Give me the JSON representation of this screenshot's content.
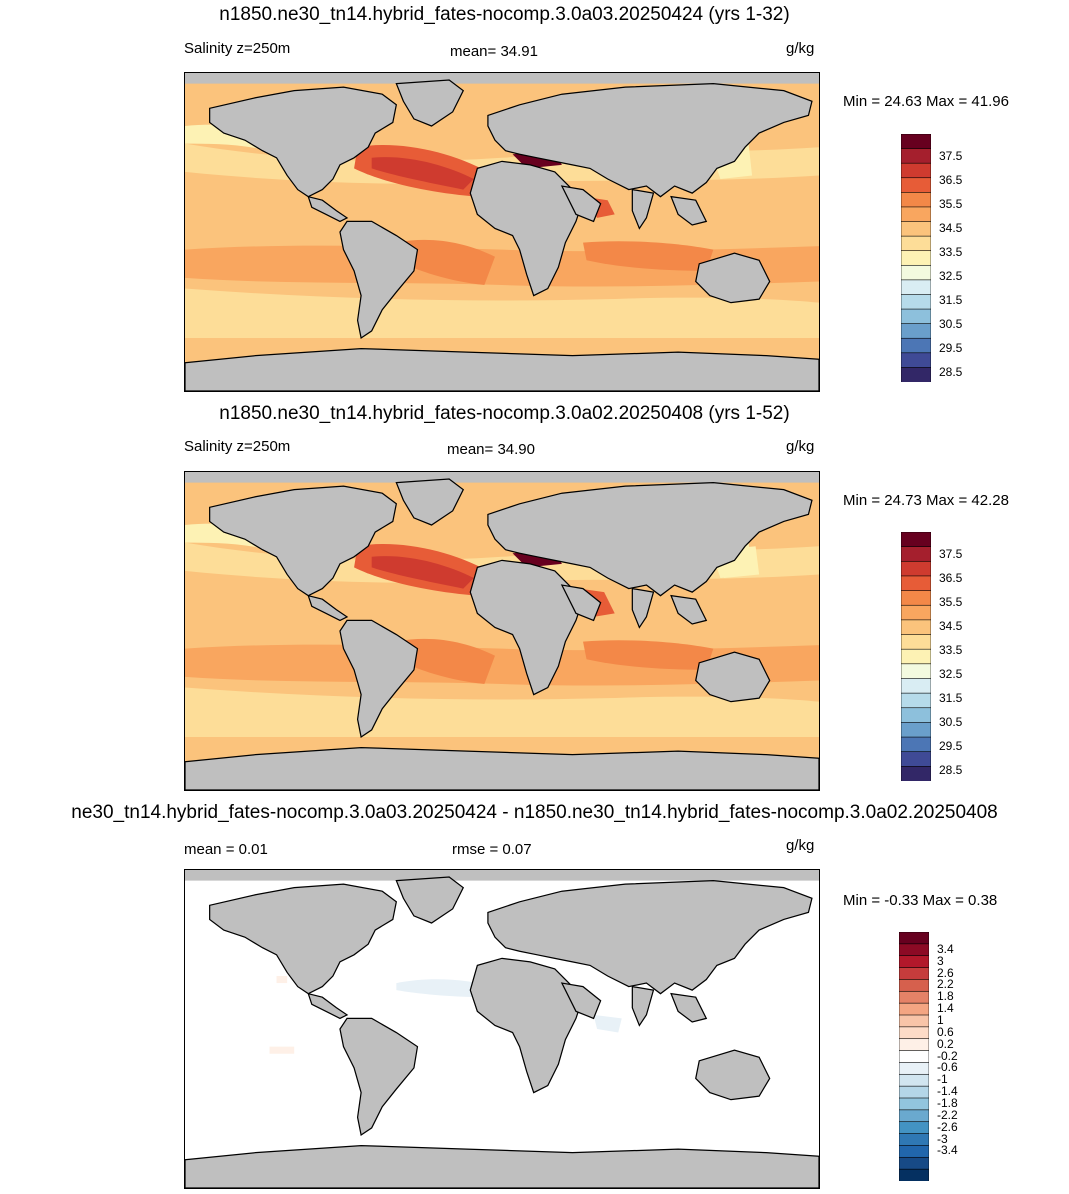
{
  "panels": [
    {
      "title": "n1850.ne30_tn14.hybrid_fates-nocomp.3.0a03.20250424 (yrs 1-32)",
      "left_label": "Salinity z=250m",
      "center_label": "mean=  34.91",
      "units": "g/kg",
      "minmax": "Min =  24.63 Max =  41.96",
      "colorbar": {
        "labels": [
          "37.5",
          "36.5",
          "35.5",
          "34.5",
          "33.5",
          "32.5",
          "31.5",
          "30.5",
          "29.5",
          "28.5"
        ],
        "colors": [
          "#67001f",
          "#a51f2d",
          "#cf3b2f",
          "#e75c37",
          "#f38848",
          "#f9a65f",
          "#fbc37c",
          "#fddd98",
          "#fdf2b4",
          "#f3fadf",
          "#d9edf3",
          "#b6dbea",
          "#8dc0dc",
          "#6a9fcb",
          "#4c76b5",
          "#3f4a96",
          "#322767"
        ]
      },
      "map_kind": "salinity_a03"
    },
    {
      "title": "n1850.ne30_tn14.hybrid_fates-nocomp.3.0a02.20250408 (yrs 1-52)",
      "left_label": "Salinity z=250m",
      "center_label": "mean=  34.90",
      "units": "g/kg",
      "minmax": "Min =  24.73 Max =  42.28",
      "colorbar": {
        "labels": [
          "37.5",
          "36.5",
          "35.5",
          "34.5",
          "33.5",
          "32.5",
          "31.5",
          "30.5",
          "29.5",
          "28.5"
        ],
        "colors": [
          "#67001f",
          "#a51f2d",
          "#cf3b2f",
          "#e75c37",
          "#f38848",
          "#f9a65f",
          "#fbc37c",
          "#fddd98",
          "#fdf2b4",
          "#f3fadf",
          "#d9edf3",
          "#b6dbea",
          "#8dc0dc",
          "#6a9fcb",
          "#4c76b5",
          "#3f4a96",
          "#322767"
        ]
      },
      "map_kind": "salinity_a02"
    },
    {
      "title": "ne30_tn14.hybrid_fates-nocomp.3.0a03.20250424 - n1850.ne30_tn14.hybrid_fates-nocomp.3.0a02.20250408",
      "left_label": "mean =   0.01",
      "center_label": "rmse =   0.07",
      "units": "g/kg",
      "minmax": "Min =  -0.33 Max =   0.38",
      "colorbar": {
        "labels": [
          "3.4",
          "3",
          "2.6",
          "2.2",
          "1.8",
          "1.4",
          "1",
          "0.6",
          "0.2",
          "-0.2",
          "-0.6",
          "-1",
          "-1.4",
          "-1.8",
          "-2.2",
          "-2.6",
          "-3",
          "-3.4"
        ],
        "colors": [
          "#67001f",
          "#8c0a25",
          "#b2182b",
          "#c63c3c",
          "#d6604d",
          "#e58267",
          "#f4a582",
          "#f8c4a8",
          "#fddbc7",
          "#fef0e7",
          "#ffffff",
          "#e8f1f7",
          "#d1e5f0",
          "#b4d6e8",
          "#92c5de",
          "#6aa9cf",
          "#4393c3",
          "#2f78b4",
          "#2166ac",
          "#174a86",
          "#053061"
        ]
      },
      "map_kind": "difference"
    }
  ]
}
